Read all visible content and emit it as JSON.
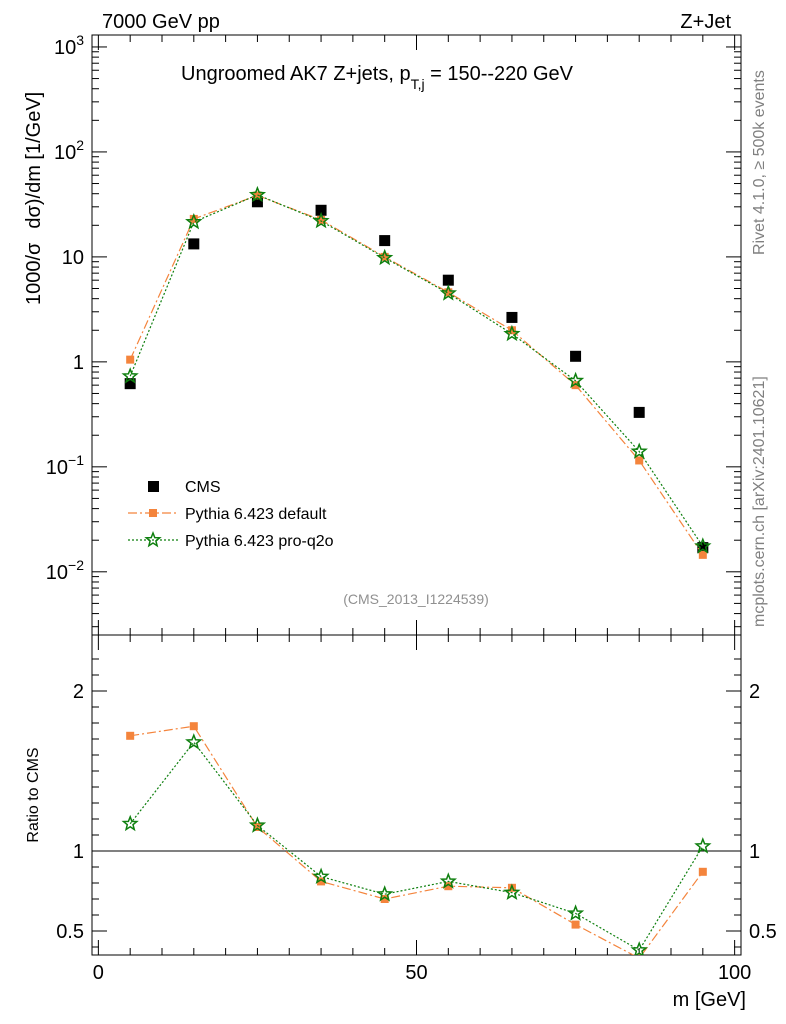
{
  "header": {
    "left": "7000 GeV pp",
    "right": "Z+Jet"
  },
  "side": {
    "rivet": "Rivet 4.1.0, ≥ 500k events",
    "mcplots": "mcplots.cern.ch [arXiv:2401.10621]"
  },
  "colors": {
    "cms": "#000000",
    "pythia_default": "#f4843c",
    "pythia_proq2o": "#0e7f0e"
  },
  "chart_data": [
    {
      "panel": "main",
      "type": "scatter",
      "title_parts": {
        "main": "Ungroomed AK7 Z+jets, p",
        "sub": "T,j",
        "tail": " = 150--220 GeV"
      },
      "ylabel_parts": {
        "a": "1000/σ",
        "b": "dσ)/dm [1/GeV]"
      },
      "yscale": "log",
      "ylim": [
        0.0025,
        1300
      ],
      "xlim": [
        -1,
        101
      ],
      "yticks": [
        {
          "v": 1000,
          "b": "10",
          "e": "3"
        },
        {
          "v": 100,
          "b": "10",
          "e": "2"
        },
        {
          "v": 10,
          "b": "10",
          "e": ""
        },
        {
          "v": 1,
          "b": "1",
          "e": ""
        },
        {
          "v": 0.1,
          "b": "10",
          "e": "−1"
        },
        {
          "v": 0.01,
          "b": "10",
          "e": "−2"
        }
      ],
      "ref_label": "(CMS_2013_I1224539)",
      "x": [
        5,
        15,
        25,
        35,
        45,
        55,
        65,
        75,
        85,
        95
      ],
      "series": [
        {
          "name": "CMS",
          "marker": "square",
          "values": [
            0.62,
            13.3,
            33.5,
            27.8,
            14.3,
            6.0,
            2.65,
            1.13,
            0.33,
            0.017
          ]
        },
        {
          "name": "Pythia 6.423 default",
          "marker": "small-square",
          "line": "dashdot",
          "values": [
            1.05,
            23.0,
            38.5,
            22.5,
            10.0,
            4.6,
            2.0,
            0.6,
            0.115,
            0.0145
          ]
        },
        {
          "name": "Pythia 6.423 pro-q2o",
          "marker": "star",
          "line": "dotted",
          "values": [
            0.73,
            21.5,
            39.0,
            22.0,
            9.8,
            4.5,
            1.85,
            0.66,
            0.14,
            0.0175
          ]
        }
      ]
    },
    {
      "panel": "ratio",
      "type": "line",
      "ylabel": "Ratio to CMS",
      "xlabel": "m [GeV]",
      "ylim": [
        0.35,
        2.35
      ],
      "xlim": [
        -1,
        101
      ],
      "yticks": [
        0.5,
        1,
        2
      ],
      "xticks": [
        0,
        50,
        100
      ],
      "x": [
        5,
        15,
        25,
        35,
        45,
        55,
        65,
        75,
        85,
        95
      ],
      "series": [
        {
          "name": "Pythia 6.423 default",
          "values": [
            1.72,
            1.78,
            1.15,
            0.81,
            0.7,
            0.78,
            0.77,
            0.54,
            0.33,
            0.87
          ]
        },
        {
          "name": "Pythia 6.423 pro-q2o",
          "values": [
            1.17,
            1.68,
            1.16,
            0.84,
            0.73,
            0.81,
            0.74,
            0.61,
            0.38,
            1.03
          ]
        }
      ]
    }
  ]
}
